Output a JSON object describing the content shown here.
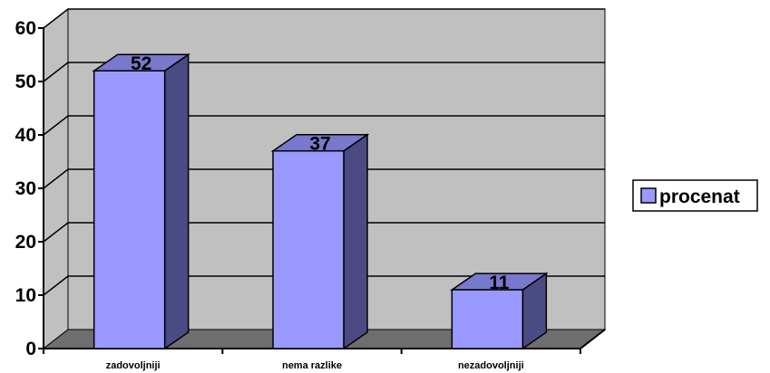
{
  "chart_data": {
    "type": "bar",
    "categories": [
      "zadovoljniji",
      "nema razlike",
      "nezadovoljniji"
    ],
    "series": [
      {
        "name": "procenat",
        "values": [
          52,
          37,
          11
        ]
      }
    ],
    "data_labels": [
      "52",
      "37",
      "11"
    ],
    "yticks": [
      "0",
      "10",
      "20",
      "30",
      "40",
      "50",
      "60"
    ],
    "ylim": [
      0,
      60
    ],
    "grid": true,
    "legend": {
      "placement": "right",
      "label": "procenat"
    },
    "colors": {
      "bar_front": "#9999ff",
      "bar_side": "#4b4b83",
      "bar_top": "#7878cc",
      "wall": "#c0c0c0",
      "floor": "#6e6e6e",
      "gridline": "#000000"
    }
  }
}
